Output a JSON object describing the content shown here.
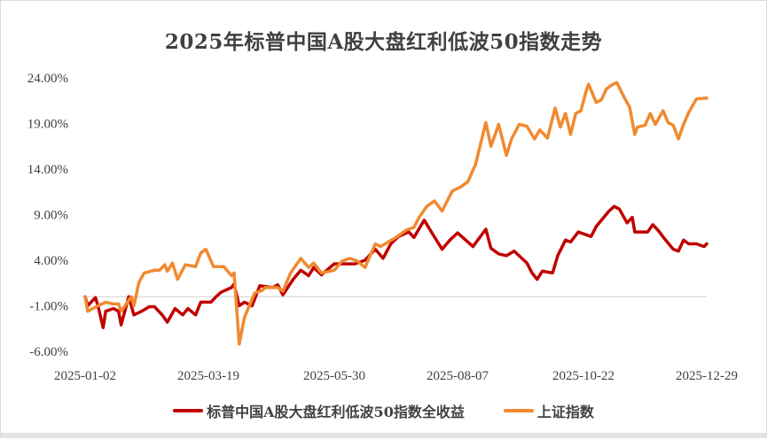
{
  "chart_data": {
    "type": "line",
    "title": "2025年标普中国A股大盘红利低波50指数走势",
    "xlabel": "",
    "ylabel": "",
    "x_unit": "trading day index",
    "xlim": [
      0,
      242
    ],
    "ylim": [
      -6,
      24
    ],
    "yticks": [
      24,
      19,
      14,
      9,
      4,
      -1,
      -6
    ],
    "ytick_labels": [
      "24.00%",
      "19.00%",
      "14.00%",
      "9.00%",
      "4.00%",
      "-1.00%",
      "-6.00%"
    ],
    "xticks": [
      0,
      48,
      97,
      145,
      194,
      242
    ],
    "xtick_labels": [
      "2025-01-02",
      "2025-03-19",
      "2025-05-30",
      "2025-08-07",
      "2025-10-22",
      "2025-12-29"
    ],
    "grid": false,
    "baseline": 0,
    "legend_position": "bottom",
    "series": [
      {
        "name": "标普中国A股大盘红利低波50指数全收益",
        "color": "#c00000",
        "points": [
          [
            0,
            0
          ],
          [
            1,
            -1
          ],
          [
            4,
            -0.1
          ],
          [
            5,
            -1
          ],
          [
            7,
            -3.4
          ],
          [
            8,
            -1.6
          ],
          [
            11,
            -1.3
          ],
          [
            13,
            -1.6
          ],
          [
            14,
            -3.1
          ],
          [
            17,
            0
          ],
          [
            19,
            -2.0
          ],
          [
            22,
            -1.6
          ],
          [
            25,
            -1.1
          ],
          [
            27,
            -1.1
          ],
          [
            30,
            -2.0
          ],
          [
            32,
            -2.8
          ],
          [
            35,
            -1.3
          ],
          [
            38,
            -2.0
          ],
          [
            40,
            -1.3
          ],
          [
            43,
            -2.0
          ],
          [
            45,
            -0.6
          ],
          [
            49,
            -0.6
          ],
          [
            51,
            0
          ],
          [
            53,
            0.5
          ],
          [
            57,
            1.0
          ],
          [
            58,
            1.4
          ],
          [
            60,
            -1.0
          ],
          [
            62,
            -0.6
          ],
          [
            65,
            -1.0
          ],
          [
            68,
            1.2
          ],
          [
            73,
            1.0
          ],
          [
            75,
            1.3
          ],
          [
            77,
            0.2
          ],
          [
            81,
            1.9
          ],
          [
            84,
            2.9
          ],
          [
            87,
            2.3
          ],
          [
            89,
            3.2
          ],
          [
            92,
            2.4
          ],
          [
            97,
            3.6
          ],
          [
            101,
            3.6
          ],
          [
            105,
            3.6
          ],
          [
            109,
            4.0
          ],
          [
            113,
            5.2
          ],
          [
            116,
            4.2
          ],
          [
            119,
            5.8
          ],
          [
            122,
            6.6
          ],
          [
            126,
            7.1
          ],
          [
            128,
            6.5
          ],
          [
            132,
            8.4
          ],
          [
            135,
            7.0
          ],
          [
            139,
            5.2
          ],
          [
            142,
            6.2
          ],
          [
            145,
            7.0
          ],
          [
            151,
            5.5
          ],
          [
            156,
            7.4
          ],
          [
            158,
            5.3
          ],
          [
            161,
            4.7
          ],
          [
            164,
            4.5
          ],
          [
            167,
            5.0
          ],
          [
            172,
            3.7
          ],
          [
            174,
            2.6
          ],
          [
            176,
            1.9
          ],
          [
            178,
            2.8
          ],
          [
            182,
            2.6
          ],
          [
            184,
            4.5
          ],
          [
            187,
            6.2
          ],
          [
            189,
            6.0
          ],
          [
            192,
            7.1
          ],
          [
            197,
            6.6
          ],
          [
            199,
            7.7
          ],
          [
            204,
            9.4
          ],
          [
            206,
            9.9
          ],
          [
            208,
            9.6
          ],
          [
            211,
            8.1
          ],
          [
            213,
            8.7
          ],
          [
            214,
            7.1
          ],
          [
            219,
            7.1
          ],
          [
            221,
            7.9
          ],
          [
            223,
            7.3
          ],
          [
            226,
            6.2
          ],
          [
            229,
            5.2
          ],
          [
            231,
            5.0
          ],
          [
            233,
            6.2
          ],
          [
            235,
            5.8
          ],
          [
            238,
            5.8
          ],
          [
            241,
            5.5
          ],
          [
            242,
            5.8
          ]
        ]
      },
      {
        "name": "上证指数",
        "color": "#f08a30",
        "points": [
          [
            0,
            0
          ],
          [
            1,
            -1.6
          ],
          [
            5,
            -1.0
          ],
          [
            8,
            -0.6
          ],
          [
            11,
            -0.8
          ],
          [
            13,
            -0.8
          ],
          [
            14,
            -1.6
          ],
          [
            18,
            0
          ],
          [
            19,
            -1
          ],
          [
            21,
            1.6
          ],
          [
            23,
            2.6
          ],
          [
            27,
            2.9
          ],
          [
            29,
            2.9
          ],
          [
            31,
            3.5
          ],
          [
            32,
            2.8
          ],
          [
            34,
            3.7
          ],
          [
            36,
            1.9
          ],
          [
            39,
            3.5
          ],
          [
            43,
            3.3
          ],
          [
            45,
            4.8
          ],
          [
            47,
            5.2
          ],
          [
            50,
            3.3
          ],
          [
            54,
            3.3
          ],
          [
            57,
            2.3
          ],
          [
            58,
            2.6
          ],
          [
            60,
            -5.2
          ],
          [
            62,
            -2.3
          ],
          [
            66,
            0.4
          ],
          [
            69,
            0.7
          ],
          [
            70,
            1.0
          ],
          [
            75,
            1.0
          ],
          [
            77,
            0.6
          ],
          [
            80,
            2.6
          ],
          [
            84,
            4.2
          ],
          [
            87,
            3.2
          ],
          [
            89,
            3.7
          ],
          [
            92,
            2.6
          ],
          [
            97,
            2.9
          ],
          [
            100,
            3.9
          ],
          [
            103,
            4.2
          ],
          [
            106,
            3.9
          ],
          [
            109,
            3.2
          ],
          [
            113,
            5.8
          ],
          [
            115,
            5.5
          ],
          [
            118,
            6.0
          ],
          [
            121,
            6.5
          ],
          [
            125,
            7.3
          ],
          [
            128,
            7.6
          ],
          [
            130,
            8.7
          ],
          [
            133,
            9.9
          ],
          [
            136,
            10.5
          ],
          [
            139,
            9.4
          ],
          [
            143,
            11.6
          ],
          [
            146,
            12.0
          ],
          [
            149,
            12.6
          ],
          [
            152,
            14.5
          ],
          [
            156,
            19.1
          ],
          [
            158,
            16.5
          ],
          [
            161,
            18.9
          ],
          [
            164,
            15.5
          ],
          [
            166,
            17.3
          ],
          [
            169,
            18.9
          ],
          [
            172,
            18.7
          ],
          [
            175,
            17.3
          ],
          [
            177,
            18.3
          ],
          [
            180,
            17.4
          ],
          [
            183,
            20.7
          ],
          [
            185,
            18.6
          ],
          [
            187,
            20.1
          ],
          [
            189,
            17.8
          ],
          [
            191,
            20.1
          ],
          [
            193,
            20.4
          ],
          [
            195,
            22.5
          ],
          [
            196,
            23.3
          ],
          [
            199,
            21.3
          ],
          [
            201,
            21.6
          ],
          [
            203,
            22.8
          ],
          [
            205,
            23.2
          ],
          [
            207,
            23.5
          ],
          [
            210,
            21.8
          ],
          [
            212,
            20.8
          ],
          [
            214,
            17.8
          ],
          [
            215,
            18.6
          ],
          [
            218,
            18.8
          ],
          [
            220,
            20.1
          ],
          [
            222,
            18.9
          ],
          [
            225,
            20.4
          ],
          [
            227,
            19.1
          ],
          [
            229,
            18.8
          ],
          [
            231,
            17.3
          ],
          [
            233,
            18.9
          ],
          [
            235,
            20.2
          ],
          [
            238,
            21.7
          ],
          [
            242,
            21.8
          ]
        ]
      }
    ]
  }
}
